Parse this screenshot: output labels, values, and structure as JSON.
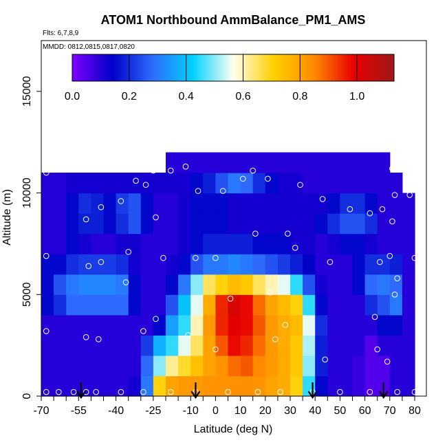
{
  "chart_data": {
    "type": "heatmap",
    "title": "ATOM1 Northbound AmmBalance_PM1_AMS",
    "subtitle_flights": "Flts: 6,7,8,9",
    "subtitle_dates": "MMDD: 0812,0815,0817,0820",
    "xlabel": "Latitude (deg N)",
    "ylabel": "Altitude (m)",
    "xlim": [
      -70,
      80
    ],
    "ylim": [
      0,
      17500
    ],
    "x_ticks": [
      -70,
      -55,
      -40,
      -25,
      -10,
      0,
      10,
      20,
      30,
      40,
      50,
      60,
      70,
      80
    ],
    "x_ticks_minor": [
      -65,
      -60,
      -50,
      -45,
      -35,
      -30,
      -20,
      -15,
      -5,
      5,
      15,
      25,
      35,
      45,
      55,
      65,
      75
    ],
    "y_ticks": [
      0,
      5000,
      10000,
      15000
    ],
    "colorbar": {
      "range": [
        0.0,
        1.13
      ],
      "tick_values": [
        0.0,
        0.2,
        0.4,
        0.6,
        0.8,
        1.0
      ],
      "tick_labels": [
        "0.0",
        "0.2",
        "0.4",
        "0.6",
        "0.8",
        "1.0"
      ],
      "colors": [
        "#7F00FF",
        "#0000C8",
        "#2F6CFF",
        "#00D2FF",
        "#FFFFF0",
        "#FFD000",
        "#FF8C00",
        "#E80000",
        "#A01818"
      ]
    },
    "grid": false,
    "x_centers": [
      -67.5,
      -62.5,
      -57.5,
      -52.5,
      -47.5,
      -42.5,
      -37.5,
      -32.5,
      -27.5,
      -22.5,
      -17.5,
      -12.5,
      -7.5,
      -2.5,
      2.5,
      7.5,
      12.5,
      17.5,
      22.5,
      27.5,
      32.5,
      37.5,
      42.5,
      47.5,
      52.5,
      57.5,
      62.5,
      67.5,
      72.5,
      77.5
    ],
    "y_centers": [
      500,
      1500,
      2500,
      3500,
      4500,
      5500,
      6500,
      7500,
      8500,
      9500,
      10500,
      11500
    ],
    "values": [
      [
        0.1,
        0.1,
        0.1,
        0.1,
        0.1,
        0.1,
        0.1,
        0.12,
        0.3,
        0.7,
        0.8,
        0.82,
        0.82,
        0.83,
        0.83,
        0.84,
        0.84,
        0.83,
        0.8,
        0.78,
        0.7,
        0.45,
        0.15,
        0.1,
        0.1,
        0.08,
        0.05,
        0.05,
        0.1,
        0.1
      ],
      [
        0.1,
        0.1,
        0.1,
        0.1,
        0.1,
        0.1,
        0.1,
        0.1,
        0.28,
        0.5,
        0.62,
        0.68,
        0.74,
        0.8,
        0.83,
        0.88,
        0.9,
        0.85,
        0.82,
        0.78,
        0.72,
        0.5,
        0.18,
        0.1,
        0.1,
        0.08,
        0.05,
        0.05,
        0.1,
        0.1
      ],
      [
        0.1,
        0.1,
        0.1,
        0.1,
        0.1,
        0.1,
        0.1,
        0.1,
        0.22,
        0.38,
        0.45,
        0.55,
        0.65,
        0.8,
        0.9,
        0.98,
        0.95,
        0.88,
        0.82,
        0.78,
        0.72,
        0.52,
        0.18,
        0.1,
        0.1,
        0.1,
        0.05,
        0.1,
        0.1,
        0.1
      ],
      [
        0.1,
        0.1,
        0.1,
        0.1,
        0.1,
        0.1,
        0.1,
        0.1,
        0.1,
        0.15,
        0.35,
        0.45,
        0.6,
        0.82,
        0.95,
        1.0,
        0.98,
        0.9,
        0.82,
        0.78,
        0.75,
        0.55,
        0.2,
        0.1,
        0.1,
        0.1,
        0.1,
        0.15,
        0.15,
        0.1
      ],
      [
        0.15,
        0.2,
        0.28,
        0.28,
        0.28,
        0.28,
        0.28,
        0.15,
        0.1,
        0.1,
        0.25,
        0.4,
        0.55,
        0.78,
        0.95,
        1.02,
        0.98,
        0.88,
        0.8,
        0.75,
        0.7,
        0.45,
        0.15,
        0.1,
        0.1,
        0.1,
        0.2,
        0.25,
        0.3,
        0.1
      ],
      [
        0.15,
        0.25,
        0.3,
        0.32,
        0.32,
        0.32,
        0.3,
        0.15,
        0.1,
        0.1,
        0.15,
        0.3,
        0.5,
        0.65,
        0.7,
        0.75,
        0.72,
        0.65,
        0.6,
        0.55,
        0.45,
        0.25,
        0.12,
        0.1,
        0.1,
        0.15,
        0.28,
        0.3,
        0.28,
        0.1
      ],
      [
        0.15,
        0.15,
        0.2,
        0.22,
        0.22,
        0.22,
        0.2,
        0.12,
        0.1,
        0.1,
        0.12,
        0.15,
        0.25,
        0.3,
        0.3,
        0.32,
        0.3,
        0.28,
        0.25,
        0.22,
        0.18,
        0.14,
        0.1,
        0.1,
        0.1,
        0.15,
        0.2,
        0.2,
        0.18,
        0.1
      ],
      [
        0.1,
        0.1,
        0.15,
        0.12,
        0.1,
        0.1,
        0.12,
        0.12,
        0.1,
        0.1,
        0.1,
        0.12,
        0.15,
        0.18,
        0.18,
        0.18,
        0.18,
        0.15,
        0.15,
        0.15,
        0.12,
        0.12,
        0.1,
        0.12,
        0.15,
        0.15,
        0.12,
        0.1,
        0.1,
        0.1
      ],
      [
        0.1,
        0.1,
        0.15,
        0.18,
        0.18,
        0.15,
        0.2,
        0.25,
        0.15,
        0.1,
        0.1,
        0.12,
        0.15,
        0.15,
        0.15,
        0.12,
        0.12,
        0.12,
        0.12,
        0.12,
        0.12,
        0.12,
        0.15,
        0.2,
        0.25,
        0.25,
        0.2,
        0.1,
        0.1,
        0.1
      ],
      [
        0.1,
        0.1,
        0.15,
        0.2,
        0.18,
        0.15,
        0.22,
        0.25,
        0.15,
        0.1,
        0.1,
        0.12,
        0.15,
        0.15,
        0.15,
        0.12,
        0.12,
        0.12,
        0.12,
        0.12,
        0.12,
        0.12,
        0.12,
        0.15,
        0.2,
        0.2,
        0.15,
        0.1,
        0.1,
        0.1
      ],
      [
        0.1,
        0.1,
        0.12,
        0.12,
        0.12,
        0.12,
        0.12,
        0.12,
        0.12,
        0.12,
        0.12,
        0.12,
        0.15,
        0.18,
        0.25,
        0.3,
        0.28,
        0.2,
        0.15,
        0.12,
        0.12,
        0.1,
        0.1,
        0.1,
        0.1,
        0.1,
        0.1,
        0.1,
        0.1,
        null
      ],
      [
        null,
        null,
        null,
        null,
        null,
        null,
        null,
        null,
        null,
        null,
        0.1,
        0.1,
        0.1,
        0.1,
        0.1,
        0.1,
        0.1,
        0.1,
        0.1,
        0.1,
        0.1,
        0.1,
        0.1,
        0.1,
        0.1,
        0.1,
        0.1,
        0.1,
        null,
        null
      ]
    ],
    "points": [
      {
        "x": -68,
        "y": 200
      },
      {
        "x": -63,
        "y": 200
      },
      {
        "x": -57,
        "y": 200
      },
      {
        "x": -52,
        "y": 200
      },
      {
        "x": -48,
        "y": 200
      },
      {
        "x": -38,
        "y": 200
      },
      {
        "x": -29,
        "y": 200
      },
      {
        "x": -18,
        "y": 200
      },
      {
        "x": -8,
        "y": 200
      },
      {
        "x": 5,
        "y": 200
      },
      {
        "x": 17,
        "y": 200
      },
      {
        "x": 26,
        "y": 200
      },
      {
        "x": 39,
        "y": 200
      },
      {
        "x": 50,
        "y": 200
      },
      {
        "x": 62,
        "y": 200
      },
      {
        "x": 73,
        "y": 200
      },
      {
        "x": 80,
        "y": 200
      },
      {
        "x": 65,
        "y": 2300
      },
      {
        "x": 69,
        "y": 1700
      },
      {
        "x": 44,
        "y": 1800
      },
      {
        "x": 24,
        "y": 2800
      },
      {
        "x": 28,
        "y": 3500
      },
      {
        "x": 0,
        "y": 2300
      },
      {
        "x": -11,
        "y": 3000
      },
      {
        "x": -24,
        "y": 3800
      },
      {
        "x": -29,
        "y": 3200
      },
      {
        "x": -47,
        "y": 2800
      },
      {
        "x": -52,
        "y": 2900
      },
      {
        "x": -68,
        "y": 3200
      },
      {
        "x": 6,
        "y": 4800
      },
      {
        "x": 22,
        "y": 5100
      },
      {
        "x": 72,
        "y": 5000
      },
      {
        "x": 64,
        "y": 3900
      },
      {
        "x": -36,
        "y": 5600
      },
      {
        "x": -51,
        "y": 6400
      },
      {
        "x": -46,
        "y": 6600
      },
      {
        "x": -68,
        "y": 6900
      },
      {
        "x": -35,
        "y": 7100
      },
      {
        "x": -21,
        "y": 6800
      },
      {
        "x": -8,
        "y": 6800
      },
      {
        "x": 0,
        "y": 6800
      },
      {
        "x": 32,
        "y": 7300
      },
      {
        "x": 46,
        "y": 6600
      },
      {
        "x": 66,
        "y": 6600
      },
      {
        "x": 70,
        "y": 6900
      },
      {
        "x": 80,
        "y": 6800
      },
      {
        "x": 73,
        "y": 5800
      },
      {
        "x": 16,
        "y": 8000
      },
      {
        "x": 29,
        "y": 8000
      },
      {
        "x": -52,
        "y": 8700
      },
      {
        "x": -46,
        "y": 9300
      },
      {
        "x": -24,
        "y": 8800
      },
      {
        "x": -38,
        "y": 9600
      },
      {
        "x": -32,
        "y": 10600
      },
      {
        "x": -28,
        "y": 10400
      },
      {
        "x": -7,
        "y": 10100
      },
      {
        "x": 3,
        "y": 10100
      },
      {
        "x": 11,
        "y": 10700
      },
      {
        "x": 21,
        "y": 10700
      },
      {
        "x": 34,
        "y": 10400
      },
      {
        "x": 43,
        "y": 9700
      },
      {
        "x": 54,
        "y": 9200
      },
      {
        "x": 62,
        "y": 9000
      },
      {
        "x": 67,
        "y": 9200
      },
      {
        "x": 71,
        "y": 8600
      },
      {
        "x": 72,
        "y": 9900
      },
      {
        "x": 78,
        "y": 9900
      },
      {
        "x": 71,
        "y": 11200
      },
      {
        "x": -68,
        "y": 11000
      },
      {
        "x": -25,
        "y": 11100
      },
      {
        "x": -18,
        "y": 11100
      },
      {
        "x": -12,
        "y": 11300
      },
      {
        "x": 15,
        "y": 11100
      }
    ],
    "arrows_x": [
      -54,
      -8,
      39,
      67.5
    ]
  }
}
